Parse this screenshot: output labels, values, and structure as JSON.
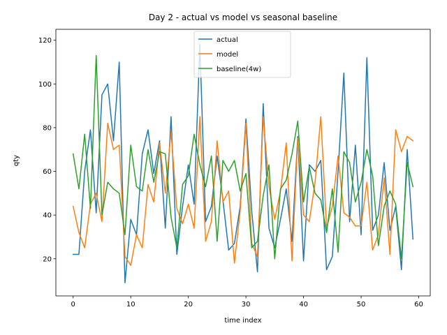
{
  "chart_data": {
    "type": "line",
    "title": "Day 2 - actual vs model vs seasonal baseline",
    "xlabel": "time index",
    "ylabel": "qty",
    "xlim": [
      -3,
      62
    ],
    "ylim": [
      3,
      125
    ],
    "xticks": [
      0,
      10,
      20,
      30,
      40,
      50,
      60
    ],
    "yticks": [
      20,
      40,
      60,
      80,
      100,
      120
    ],
    "grid": false,
    "legend_placement": "upper center",
    "series": [
      {
        "name": "actual",
        "color": "#1f77b4",
        "x": [
          0,
          1,
          2,
          3,
          4,
          5,
          6,
          7,
          8,
          9,
          10,
          11,
          12,
          13,
          14,
          15,
          16,
          17,
          18,
          19,
          20,
          21,
          22,
          23,
          24,
          25,
          26,
          27,
          28,
          29,
          30,
          31,
          32,
          33,
          34,
          35,
          36,
          37,
          38,
          39,
          40,
          41,
          42,
          43,
          44,
          45,
          46,
          47,
          48,
          49,
          50,
          51,
          52,
          53,
          54,
          55,
          56,
          57,
          58,
          59
        ],
        "values": [
          22,
          22,
          60,
          79,
          41,
          95,
          100,
          74,
          110,
          9,
          38,
          31,
          68,
          79,
          59,
          74,
          34,
          85,
          22,
          44,
          63,
          45,
          118,
          37,
          44,
          67,
          47,
          24,
          27,
          44,
          84,
          42,
          14,
          91,
          34,
          25,
          38,
          52,
          28,
          76,
          19,
          63,
          60,
          65,
          15,
          21,
          60,
          105,
          37,
          72,
          31,
          112,
          33,
          40,
          64,
          33,
          44,
          15,
          70,
          29
        ]
      },
      {
        "name": "model",
        "color": "#ff7f0e",
        "x": [
          0,
          1,
          2,
          3,
          4,
          5,
          6,
          7,
          8,
          9,
          10,
          11,
          12,
          13,
          14,
          15,
          16,
          17,
          18,
          19,
          20,
          21,
          22,
          23,
          24,
          25,
          26,
          27,
          28,
          29,
          30,
          31,
          32,
          33,
          34,
          35,
          36,
          37,
          38,
          39,
          40,
          41,
          42,
          43,
          44,
          45,
          46,
          47,
          48,
          49,
          50,
          51,
          52,
          53,
          54,
          55,
          56,
          57,
          58,
          59
        ],
        "values": [
          44,
          32,
          25,
          45,
          50,
          37,
          82,
          70,
          72,
          21,
          17,
          31,
          25,
          54,
          46,
          73,
          50,
          78,
          43,
          36,
          45,
          34,
          85,
          28,
          37,
          74,
          46,
          51,
          18,
          42,
          82,
          27,
          21,
          85,
          53,
          38,
          51,
          73,
          19,
          75,
          40,
          37,
          55,
          85,
          34,
          44,
          67,
          41,
          39,
          35,
          35,
          55,
          24,
          31,
          57,
          22,
          79,
          69,
          76,
          74
        ]
      },
      {
        "name": "baseline(4w)",
        "color": "#2ca02c",
        "x": [
          0,
          1,
          2,
          3,
          4,
          5,
          6,
          7,
          8,
          9,
          10,
          11,
          12,
          13,
          14,
          15,
          16,
          17,
          18,
          19,
          20,
          21,
          22,
          23,
          24,
          25,
          26,
          27,
          28,
          29,
          30,
          31,
          32,
          33,
          34,
          35,
          36,
          37,
          38,
          39,
          40,
          41,
          42,
          43,
          44,
          45,
          46,
          47,
          48,
          49,
          50,
          51,
          52,
          53,
          54,
          55,
          56,
          57,
          58,
          59
        ],
        "values": [
          68,
          52,
          77,
          43,
          113,
          40,
          55,
          52,
          50,
          31,
          72,
          53,
          51,
          70,
          55,
          69,
          68,
          39,
          25,
          54,
          58,
          77,
          63,
          53,
          67,
          28,
          65,
          60,
          65,
          51,
          59,
          25,
          28,
          49,
          63,
          20,
          52,
          56,
          68,
          83,
          46,
          62,
          50,
          47,
          32,
          52,
          23,
          69,
          64,
          46,
          55,
          70,
          58,
          26,
          44,
          51,
          45,
          20,
          64,
          53
        ]
      }
    ]
  }
}
